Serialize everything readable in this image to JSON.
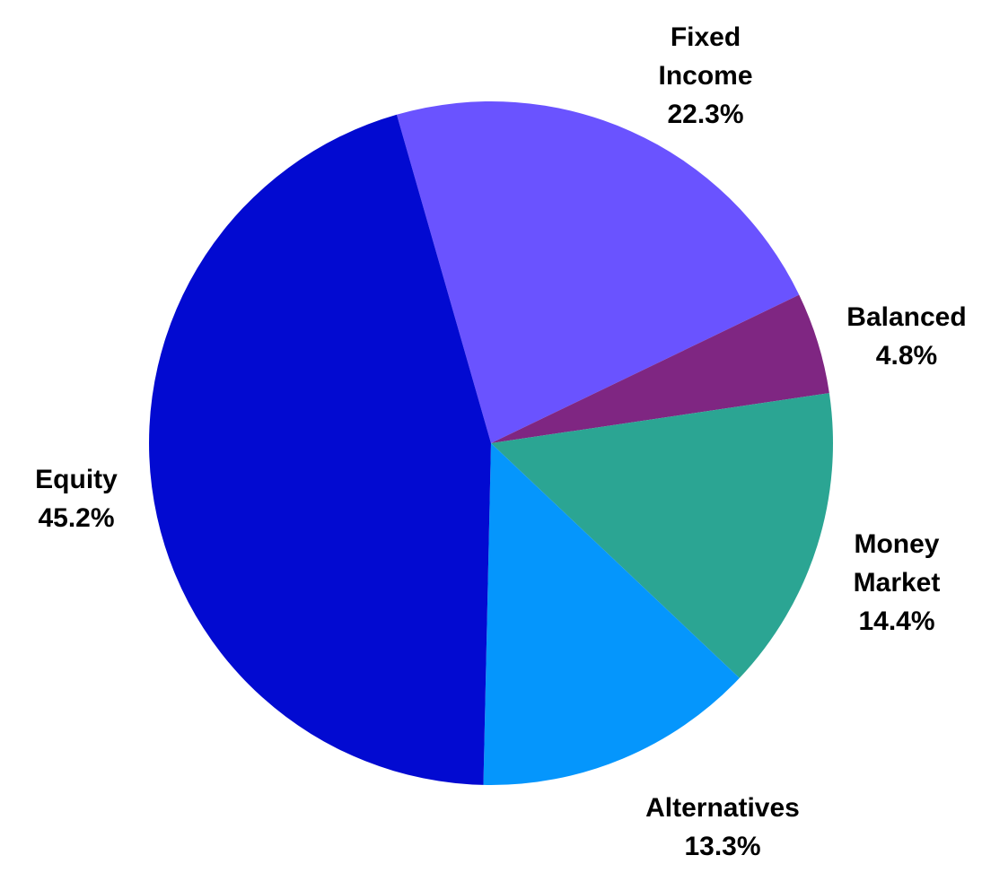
{
  "chart_data": {
    "type": "pie",
    "title": "",
    "slices": [
      {
        "lines": [
          "Fixed",
          "Income"
        ],
        "label": "Fixed Income",
        "value": 22.3,
        "value_label": "22.3%",
        "color": "#6a53ff"
      },
      {
        "lines": [
          "Balanced"
        ],
        "label": "Balanced",
        "value": 4.8,
        "value_label": "4.8%",
        "color": "#7f2682"
      },
      {
        "lines": [
          "Money",
          "Market"
        ],
        "label": "Money Market",
        "value": 14.4,
        "value_label": "14.4%",
        "color": "#2ba593"
      },
      {
        "lines": [
          "Alternatives"
        ],
        "label": "Alternatives",
        "value": 13.3,
        "value_label": "13.3%",
        "color": "#0596fc"
      },
      {
        "lines": [
          "Equity"
        ],
        "label": "Equity",
        "value": 45.2,
        "value_label": "45.2%",
        "color": "#020ad1"
      }
    ],
    "start_angle_deg": 344,
    "direction": "clockwise",
    "legend": "none",
    "data_labels": "outside"
  }
}
